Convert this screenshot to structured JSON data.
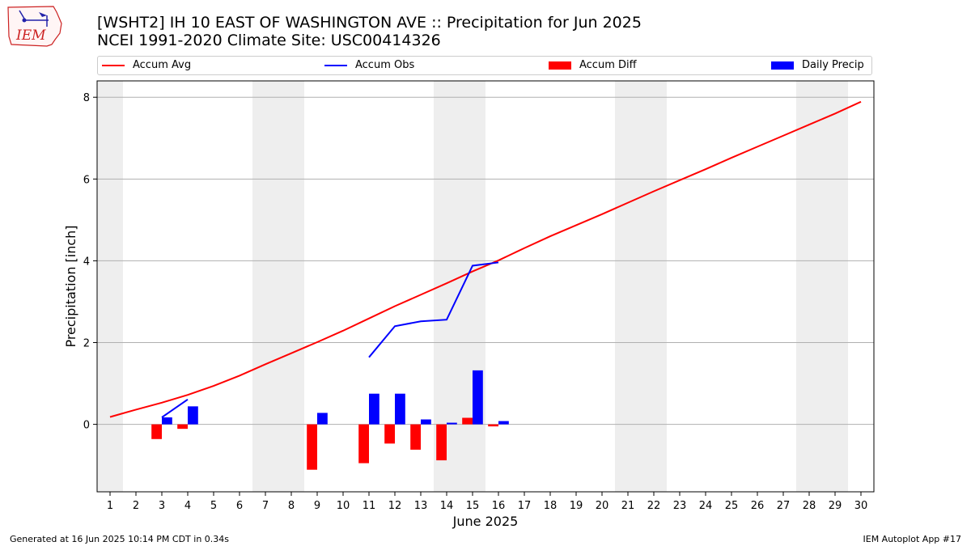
{
  "logo_text": "IEM",
  "title_line1": "[WSHT2] IH 10 EAST OF WASHINGTON AVE :: Precipitation for Jun 2025",
  "title_line2": "NCEI 1991-2020 Climate Site: USC00414326",
  "footer_left": "Generated at 16 Jun 2025 10:14 PM CDT in 0.34s",
  "footer_right": "IEM Autoplot App #17",
  "colors": {
    "avg": "#ff0000",
    "obs": "#0000ff",
    "diff": "#ff0000",
    "precip": "#0000ff",
    "weekend": "#eeeeee",
    "grid": "#b0b0b0"
  },
  "chart_data": {
    "type": "bar",
    "xlabel": "June 2025",
    "ylabel": "Precipitation [inch]",
    "x": [
      1,
      2,
      3,
      4,
      5,
      6,
      7,
      8,
      9,
      10,
      11,
      12,
      13,
      14,
      15,
      16,
      17,
      18,
      19,
      20,
      21,
      22,
      23,
      24,
      25,
      26,
      27,
      28,
      29,
      30
    ],
    "xlim": [
      0.5,
      30.5
    ],
    "ylim": [
      -1.65,
      8.4
    ],
    "yticks": [
      0,
      2,
      4,
      6,
      8
    ],
    "weekend_days": [
      1,
      7,
      8,
      14,
      15,
      21,
      22,
      28,
      29
    ],
    "grid": "y",
    "legend_placement": "top",
    "series": [
      {
        "name": "Accum Avg",
        "kind": "line",
        "x": [
          1,
          2,
          3,
          4,
          5,
          6,
          7,
          8,
          9,
          10,
          11,
          12,
          13,
          14,
          15,
          16,
          17,
          18,
          19,
          20,
          21,
          22,
          23,
          24,
          25,
          26,
          27,
          28,
          29,
          30
        ],
        "values": [
          0.18,
          0.36,
          0.53,
          0.72,
          0.94,
          1.19,
          1.47,
          1.74,
          2.01,
          2.29,
          2.59,
          2.89,
          3.17,
          3.45,
          3.74,
          4.01,
          4.31,
          4.6,
          4.87,
          5.14,
          5.42,
          5.7,
          5.97,
          6.24,
          6.52,
          6.79,
          7.06,
          7.33,
          7.6,
          7.89
        ]
      },
      {
        "name": "Accum Obs",
        "kind": "line",
        "segments": [
          {
            "x": [
              3,
              4
            ],
            "values": [
              0.17,
              0.61
            ]
          },
          {
            "x": [
              11,
              12,
              13,
              14,
              15,
              16
            ],
            "values": [
              1.64,
              2.4,
              2.52,
              2.56,
              3.88,
              3.96
            ]
          }
        ]
      },
      {
        "name": "Accum Diff",
        "kind": "bar",
        "x": [
          3,
          4,
          9,
          11,
          12,
          13,
          14,
          15,
          16
        ],
        "values": [
          -0.36,
          -0.11,
          -1.11,
          -0.95,
          -0.47,
          -0.62,
          -0.88,
          0.16,
          -0.05
        ]
      },
      {
        "name": "Daily Precip",
        "kind": "bar",
        "x": [
          3,
          4,
          9,
          11,
          12,
          13,
          14,
          15,
          16
        ],
        "values": [
          0.17,
          0.44,
          0.28,
          0.75,
          0.75,
          0.12,
          0.04,
          1.32,
          0.08
        ]
      }
    ]
  }
}
